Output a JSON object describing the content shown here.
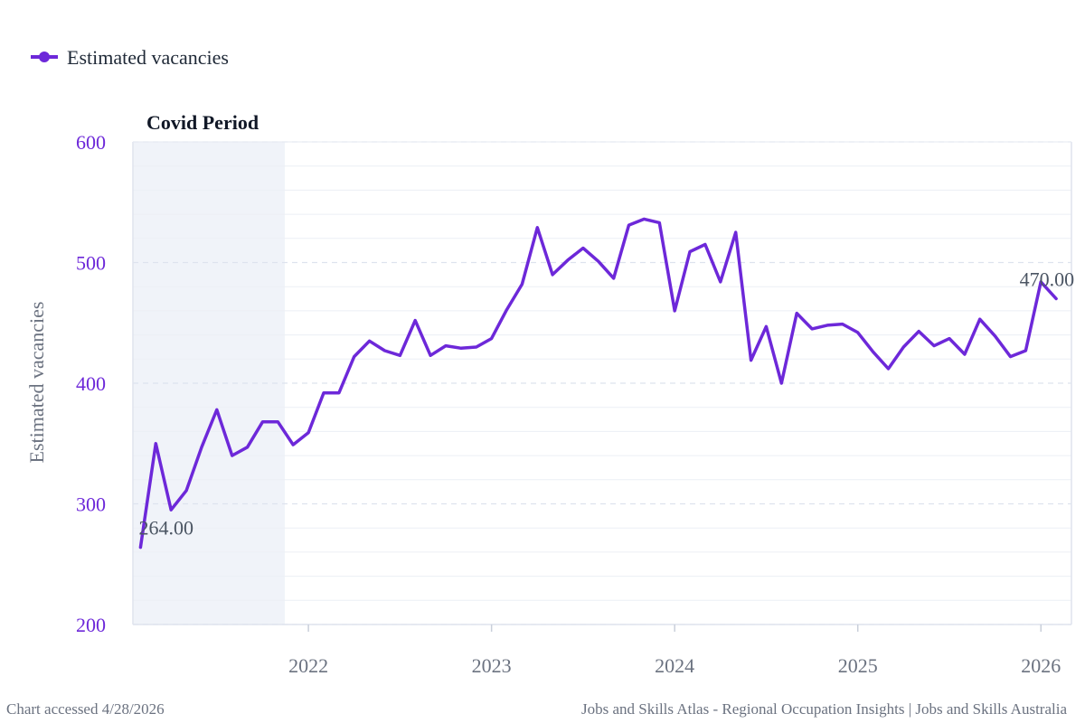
{
  "legend": {
    "label": "Estimated vacancies",
    "color": "#6d28d9"
  },
  "footer": {
    "left": "Chart accessed 4/28/2026",
    "right": "Jobs and Skills Atlas - Regional Occupation Insights | Jobs and Skills Australia"
  },
  "chart_data": {
    "type": "line",
    "ylabel": "Estimated vacancies",
    "ylim": [
      200,
      600
    ],
    "yticks": [
      200,
      300,
      400,
      500,
      600
    ],
    "xticks": [
      "2022",
      "2023",
      "2024",
      "2025",
      "2026"
    ],
    "xlim": [
      "2021-02",
      "2026-03"
    ],
    "shaded_region": {
      "label": "Covid Period",
      "start": "2021-02",
      "end": "2021-11"
    },
    "grid": true,
    "legend_position": "top-left",
    "series": [
      {
        "name": "Estimated vacancies",
        "color": "#6d28d9",
        "x": [
          "2021-02",
          "2021-03",
          "2021-04",
          "2021-05",
          "2021-06",
          "2021-07",
          "2021-08",
          "2021-09",
          "2021-10",
          "2021-11",
          "2021-12",
          "2022-01",
          "2022-02",
          "2022-03",
          "2022-04",
          "2022-05",
          "2022-06",
          "2022-07",
          "2022-08",
          "2022-09",
          "2022-10",
          "2022-11",
          "2022-12",
          "2023-01",
          "2023-02",
          "2023-03",
          "2023-04",
          "2023-05",
          "2023-06",
          "2023-07",
          "2023-08",
          "2023-09",
          "2023-10",
          "2023-11",
          "2023-12",
          "2024-01",
          "2024-02",
          "2024-03",
          "2024-04",
          "2024-05",
          "2024-06",
          "2024-07",
          "2024-08",
          "2024-09",
          "2024-10",
          "2024-11",
          "2024-12",
          "2025-01",
          "2025-02",
          "2025-03",
          "2025-04",
          "2025-05",
          "2025-06",
          "2025-07",
          "2025-08",
          "2025-09",
          "2025-10",
          "2025-11",
          "2025-12",
          "2026-01",
          "2026-02"
        ],
        "values": [
          264,
          350,
          295,
          311,
          347,
          378,
          340,
          347,
          368,
          368,
          349,
          359,
          392,
          392,
          422,
          435,
          427,
          423,
          452,
          423,
          431,
          429,
          430,
          437,
          461,
          482,
          529,
          490,
          502,
          512,
          501,
          487,
          531,
          536,
          533,
          460,
          509,
          515,
          484,
          525,
          419,
          447,
          400,
          458,
          445,
          448,
          449,
          442,
          426,
          412,
          430,
          443,
          431,
          437,
          424,
          453,
          439,
          422,
          427,
          484,
          470
        ],
        "point_labels": [
          {
            "x": "2021-02",
            "text": "264.00"
          },
          {
            "x": "2026-02",
            "text": "470.00"
          }
        ]
      }
    ]
  }
}
